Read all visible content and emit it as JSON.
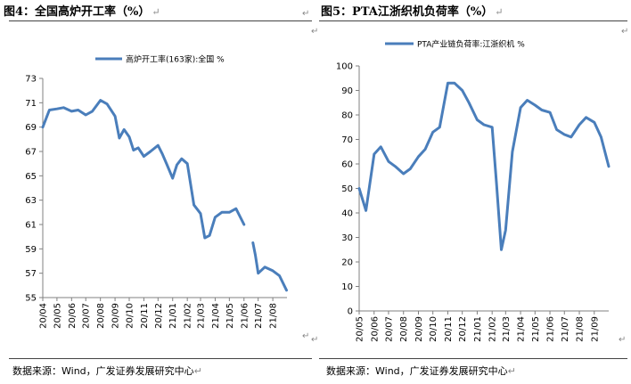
{
  "panels": {
    "left_title": "图4：全国高炉开工率（%）",
    "right_title": "图5：PTA江浙织机负荷率（%）",
    "left_source": "数据来源：Wind，广发证券发展研究中心",
    "right_source": "数据来源：Wind，广发证券发展研究中心",
    "return_mark": "↵"
  },
  "colors": {
    "series": "#4a7ebb",
    "axis": "#808080",
    "frame": "#444444"
  },
  "chart_data": [
    {
      "type": "line",
      "title": "",
      "series": [
        {
          "name": "高炉开工率(163家):全国 %",
          "x": [
            "2020-04",
            "2020-04-15",
            "2020-05",
            "2020-05-15",
            "2020-06",
            "2020-06-15",
            "2020-07",
            "2020-07-15",
            "2020-08",
            "2020-08-15",
            "2020-09",
            "2020-09-10",
            "2020-09-20",
            "2020-10",
            "2020-10-10",
            "2020-10-20",
            "2020-11",
            "2020-11-15",
            "2020-12",
            "2020-12-10",
            "2020-12-20",
            "2021-01",
            "2021-01-10",
            "2021-01-20",
            "2021-02",
            "2021-02-15",
            "2021-03",
            "2021-03-10",
            "2021-03-20",
            "2021-04",
            "2021-04-15",
            "2021-05",
            "2021-05-15",
            "2021-06",
            "2021-06-20",
            "2021-06-25",
            "2021-07",
            "2021-07-15",
            "2021-08",
            "2021-08-15",
            "2021-08-30"
          ],
          "y": [
            69.0,
            70.4,
            70.5,
            70.6,
            70.3,
            70.4,
            70.0,
            70.3,
            71.2,
            70.9,
            69.9,
            68.1,
            68.8,
            68.2,
            67.1,
            67.3,
            66.6,
            67.0,
            67.5,
            66.8,
            65.9,
            64.8,
            65.9,
            66.4,
            66.0,
            62.6,
            61.9,
            59.9,
            60.1,
            61.6,
            62.0,
            62.0,
            62.3,
            61.0,
            59.5,
            58.5,
            57.0,
            57.5,
            57.2,
            56.8,
            55.6
          ],
          "gap_after_index": 33
        }
      ],
      "x_ticks": [
        "20/04",
        "20/05",
        "20/06",
        "20/07",
        "20/08",
        "20/09",
        "20/10",
        "20/11",
        "20/12",
        "21/01",
        "21/02",
        "21/03",
        "21/04",
        "21/05",
        "21/06",
        "21/07",
        "21/08"
      ],
      "y_ticks": [
        55,
        57,
        59,
        61,
        63,
        65,
        67,
        69,
        71,
        73
      ],
      "ylim": [
        55,
        73
      ],
      "legend": "top"
    },
    {
      "type": "line",
      "title": "",
      "series": [
        {
          "name": "PTA产业链负荷率:江浙织机 %",
          "x": [
            "2020-05",
            "2020-05-15",
            "2020-06",
            "2020-06-15",
            "2020-07",
            "2020-07-15",
            "2020-08",
            "2020-08-15",
            "2020-09",
            "2020-09-15",
            "2020-10",
            "2020-10-15",
            "2020-11",
            "2020-11-15",
            "2020-12",
            "2020-12-15",
            "2021-01",
            "2021-01-15",
            "2021-02",
            "2021-02-10",
            "2021-02-20",
            "2021-03",
            "2021-03-15",
            "2021-04",
            "2021-04-15",
            "2021-05",
            "2021-05-15",
            "2021-06",
            "2021-06-15",
            "2021-07",
            "2021-07-15",
            "2021-08",
            "2021-08-15",
            "2021-09",
            "2021-09-15",
            "2021-10"
          ],
          "y": [
            50,
            41,
            64,
            67,
            61,
            59,
            56,
            58,
            63,
            66,
            73,
            75,
            93,
            93,
            90,
            85,
            78,
            76,
            75,
            52,
            25,
            33,
            65,
            83,
            86,
            84,
            82,
            81,
            74,
            72,
            71,
            76,
            79,
            77,
            71,
            59
          ]
        }
      ],
      "x_ticks": [
        "20/05",
        "20/06",
        "20/07",
        "20/08",
        "20/09",
        "20/10",
        "20/11",
        "20/12",
        "21/01",
        "21/02",
        "21/03",
        "21/04",
        "21/05",
        "21/06",
        "21/07",
        "21/08",
        "21/09"
      ],
      "y_ticks": [
        0,
        10,
        20,
        30,
        40,
        50,
        60,
        70,
        80,
        90,
        100
      ],
      "ylim": [
        0,
        100
      ],
      "legend": "top"
    }
  ]
}
